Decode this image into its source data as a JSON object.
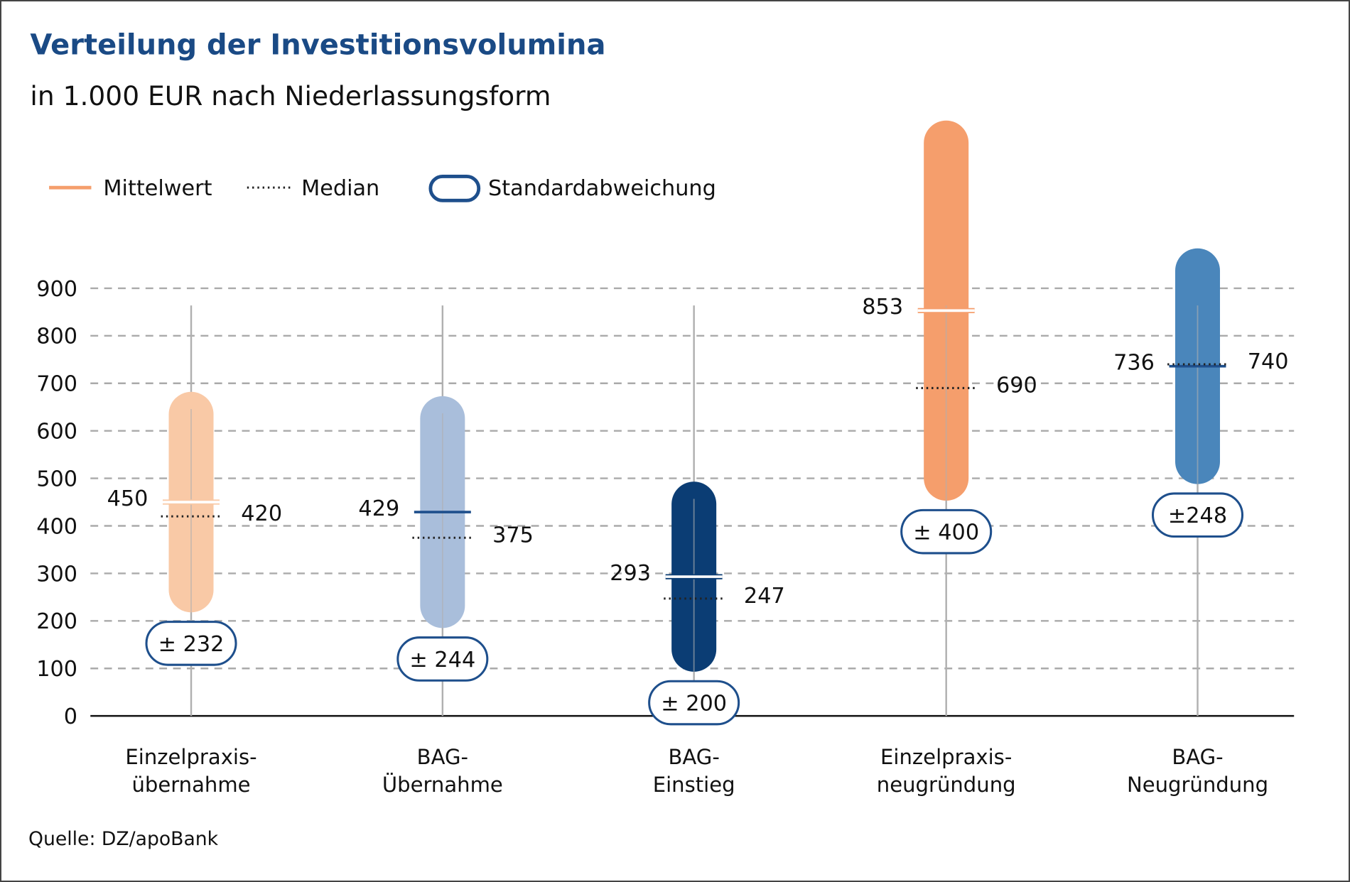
{
  "chart_data": {
    "type": "range-bar",
    "title": "Verteilung der Investitionsvolumina",
    "subtitle": "in 1.000 EUR nach Niederlassungsform",
    "legend": {
      "mean": "Mittelwert",
      "median": "Median",
      "sd": "Standardabweichung",
      "placement": "top-left"
    },
    "ylim": [
      0,
      900
    ],
    "yticks": [
      0,
      100,
      200,
      300,
      400,
      500,
      600,
      700,
      800,
      900
    ],
    "grid": true,
    "categories": [
      {
        "line1": "Einzelpraxis-",
        "line2": "übernahme",
        "mean": 450,
        "median": 420,
        "sd": 232,
        "sd_label": "± 232",
        "color": "#f9c9a6",
        "mean_color": "#ffffff"
      },
      {
        "line1": "BAG-",
        "line2": "Übernahme",
        "mean": 429,
        "median": 375,
        "sd": 244,
        "sd_label": "± 244",
        "color": "#a9bedb",
        "mean_color": "#1e4f8c"
      },
      {
        "line1": "BAG-",
        "line2": "Einstieg",
        "mean": 293,
        "median": 247,
        "sd": 200,
        "sd_label": "± 200",
        "color": "#0b3d74",
        "mean_color": "#ffffff"
      },
      {
        "line1": "Einzelpraxis-",
        "line2": "neugründung",
        "mean": 853,
        "median": 690,
        "sd": 400,
        "sd_label": "± 400",
        "color": "#f59e6c",
        "mean_color": "#ffffff"
      },
      {
        "line1": "BAG-",
        "line2": "Neugründung",
        "mean": 736,
        "median": 740,
        "sd": 248,
        "sd_label": "±248",
        "color": "#4a86bb",
        "mean_color": "#1e4f8c"
      }
    ],
    "source": "Quelle: DZ/apoBank",
    "colors": {
      "title": "#1a4a85",
      "badge": "#1e4f8c",
      "legend_mean": "#f59e6c"
    }
  }
}
